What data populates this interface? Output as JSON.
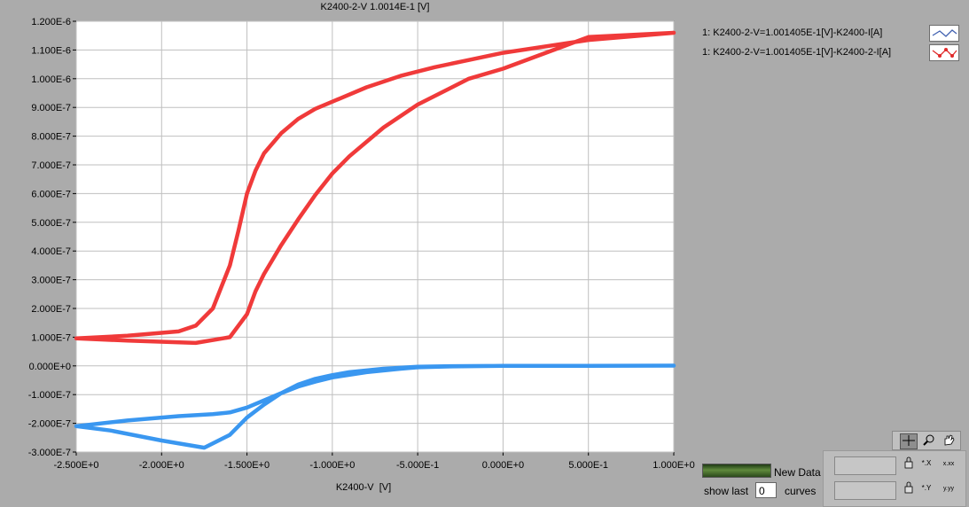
{
  "chart_data": {
    "type": "line",
    "title": "K2400-2-V 1.0014E-1 [V]",
    "xlabel": "K2400-V  [V]",
    "ylabel": "",
    "xlim": [
      -2.5,
      1.0
    ],
    "ylim": [
      -3e-07,
      1.2e-06
    ],
    "x_ticks": [
      -2.5,
      -2.0,
      -1.5,
      -1.0,
      -0.5,
      0.0,
      0.5,
      1.0
    ],
    "x_tick_labels": [
      "-2.500E+0",
      "-2.000E+0",
      "-1.500E+0",
      "-1.000E+0",
      "-5.000E-1",
      "0.000E+0",
      "5.000E-1",
      "1.000E+0"
    ],
    "y_ticks": [
      1.2e-06,
      1.1e-06,
      1e-06,
      9e-07,
      8e-07,
      7e-07,
      6e-07,
      5e-07,
      4e-07,
      3e-07,
      2e-07,
      1e-07,
      0.0,
      -1e-07,
      -2e-07,
      -3e-07
    ],
    "y_tick_labels": [
      "1.200E-6",
      "1.100E-6",
      "1.000E-6",
      "9.000E-7",
      "8.000E-7",
      "7.000E-7",
      "6.000E-7",
      "5.000E-7",
      "4.000E-7",
      "3.000E-7",
      "2.000E-7",
      "1.000E-7",
      "0.000E+0",
      "-1.000E-7",
      "-2.000E-7",
      "-3.000E-7"
    ],
    "grid": true,
    "legend_placement": "right",
    "series": [
      {
        "name": "1: K2400-2-V=1.001405E-1[V]-K2400-I[A]",
        "color": "#3a97f0",
        "x": [
          -2.5,
          -2.2,
          -1.9,
          -1.7,
          -1.6,
          -1.5,
          -1.4,
          -1.3,
          -1.2,
          -1.1,
          -1.0,
          -0.8,
          -0.6,
          -0.5,
          -0.3,
          0.0,
          0.5,
          1.0,
          0.5,
          0.0,
          -0.3,
          -0.5,
          -0.7,
          -0.9,
          -1.0,
          -1.1,
          -1.2,
          -1.3,
          -1.4,
          -1.5,
          -1.6,
          -1.75,
          -2.0,
          -2.3,
          -2.5
        ],
        "y": [
          -2.1e-07,
          -1.9e-07,
          -1.75e-07,
          -1.68e-07,
          -1.62e-07,
          -1.45e-07,
          -1.2e-07,
          -9.5e-08,
          -7.2e-08,
          -5.5e-08,
          -4e-08,
          -2.2e-08,
          -1e-08,
          -5e-09,
          -2e-09,
          0.0,
          0.0,
          1e-09,
          0.0,
          0.0,
          -1e-09,
          -3e-09,
          -1e-08,
          -2.2e-08,
          -3.2e-08,
          -4.5e-08,
          -6.5e-08,
          -9.5e-08,
          -1.35e-07,
          -1.8e-07,
          -2.4e-07,
          -2.85e-07,
          -2.6e-07,
          -2.25e-07,
          -2.1e-07
        ]
      },
      {
        "name": "1: K2400-2-V=1.001405E-1[V]-K2400-2-I[A]",
        "color": "#f03a3a",
        "x": [
          -2.5,
          -2.2,
          -1.9,
          -1.8,
          -1.7,
          -1.6,
          -1.55,
          -1.5,
          -1.45,
          -1.4,
          -1.3,
          -1.2,
          -1.1,
          -1.0,
          -0.8,
          -0.6,
          -0.4,
          -0.2,
          0.0,
          0.5,
          1.0,
          0.5,
          0.0,
          -0.2,
          -0.5,
          -0.7,
          -0.9,
          -1.0,
          -1.1,
          -1.2,
          -1.3,
          -1.35,
          -1.4,
          -1.45,
          -1.5,
          -1.6,
          -1.8,
          -2.2,
          -2.5
        ],
        "y": [
          9.6e-08,
          1.05e-07,
          1.2e-07,
          1.4e-07,
          2e-07,
          3.5e-07,
          4.7e-07,
          6e-07,
          6.8e-07,
          7.4e-07,
          8.1e-07,
          8.6e-07,
          8.95e-07,
          9.2e-07,
          9.7e-07,
          1.01e-06,
          1.04e-06,
          1.065e-06,
          1.09e-06,
          1.135e-06,
          1.16e-06,
          1.145e-06,
          1.035e-06,
          1e-06,
          9.1e-07,
          8.3e-07,
          7.3e-07,
          6.7e-07,
          5.95e-07,
          5.1e-07,
          4.2e-07,
          3.7e-07,
          3.2e-07,
          2.6e-07,
          1.8e-07,
          1e-07,
          8e-08,
          8.8e-08,
          9.6e-08
        ]
      }
    ]
  },
  "controls": {
    "new_data_label": "New Data",
    "show_last_label": "show last",
    "show_last_value": "0",
    "curves_label": "curves",
    "tool_icons": [
      "crosshair-icon",
      "zoom-icon",
      "pan-hand-icon"
    ]
  }
}
